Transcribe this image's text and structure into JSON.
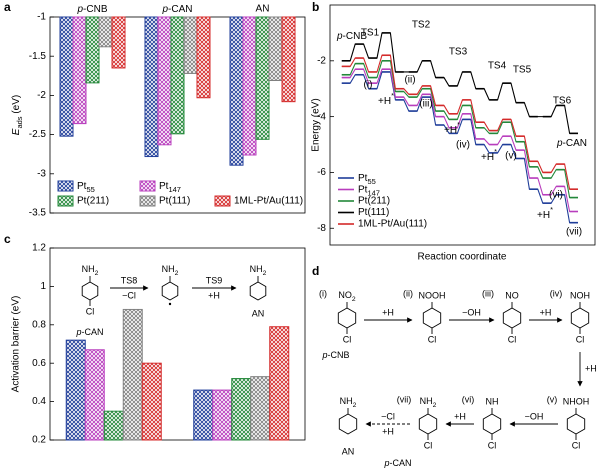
{
  "panels": [
    "a",
    "b",
    "c",
    "d"
  ],
  "chart_data": [
    {
      "type": "bar",
      "ylabel": "Eads (eV)",
      "categories": [
        "p-CNB",
        "p-CAN",
        "AN"
      ],
      "ylim": [
        -3.5,
        -1.0
      ],
      "yticks": [
        -3.5,
        -3.0,
        -2.5,
        -2.0,
        -1.5,
        -1.0
      ],
      "hatch": true,
      "series": [
        {
          "name": "Pt55",
          "color": "#1f3d99",
          "values": [
            -2.52,
            -2.78,
            -2.89
          ]
        },
        {
          "name": "Pt147",
          "color": "#b83dbd",
          "values": [
            -2.36,
            -2.63,
            -2.76
          ]
        },
        {
          "name": "Pt(211)",
          "color": "#23883a",
          "values": [
            -1.84,
            -2.49,
            -2.56
          ]
        },
        {
          "name": "Pt(111)",
          "color": "#808080",
          "values": [
            -1.38,
            -1.72,
            -1.81
          ]
        },
        {
          "name": "1ML-Pt/Au(111)",
          "color": "#d42a2a",
          "values": [
            -1.65,
            -2.03,
            -2.08
          ]
        }
      ]
    },
    {
      "type": "energy-profile",
      "ylabel": "Energy (eV)",
      "xlabel": "Reaction coordinate",
      "ylim": [
        -8.6,
        0
      ],
      "yticks": [
        -8,
        -6,
        -4,
        -2
      ],
      "annotations": [
        "p-CNB",
        "TS1",
        "TS2",
        "TS3",
        "TS4",
        "TS5",
        "TS6",
        "(i)",
        "(ii)",
        "(iii)",
        "(iv)",
        "(v)",
        "(vi)",
        "(vii)",
        "+H*",
        "+H*",
        "+H*",
        "+H*",
        "p-CAN"
      ],
      "series": [
        {
          "name": "Pt55",
          "color": "#1f3d99",
          "values": [
            -2.8,
            -2.5,
            -3.0,
            -2.4,
            -3.4,
            -3.8,
            -3.3,
            -4.3,
            -4.6,
            -4.1,
            -5.0,
            -5.3,
            -5.0,
            -5.5,
            -6.6,
            -7.1,
            -6.8,
            -7.8
          ]
        },
        {
          "name": "Pt147",
          "color": "#b83dbd",
          "values": [
            -2.6,
            -2.3,
            -2.8,
            -2.3,
            -3.3,
            -3.6,
            -3.2,
            -4.0,
            -4.4,
            -3.9,
            -4.8,
            -5.0,
            -4.7,
            -5.2,
            -6.2,
            -6.8,
            -6.5,
            -7.4
          ]
        },
        {
          "name": "Pt(211)",
          "color": "#23883a",
          "values": [
            -2.5,
            -2.1,
            -2.6,
            -2.0,
            -3.1,
            -3.3,
            -3.0,
            -3.8,
            -4.1,
            -3.6,
            -4.4,
            -4.6,
            -4.2,
            -4.9,
            -5.8,
            -6.2,
            -5.9,
            -6.9
          ]
        },
        {
          "name": "Pt(111)",
          "color": "#000000",
          "values": [
            -2.0,
            -1.4,
            -1.9,
            -1.0,
            -2.4,
            -2.4,
            -2.0,
            -2.6,
            -2.9,
            -2.4,
            -3.0,
            -3.4,
            -2.8,
            -3.5,
            -4.0,
            -4.0,
            -3.6,
            -4.6
          ]
        },
        {
          "name": "1ML-Pt/Au(111)",
          "color": "#d42a2a",
          "values": [
            -2.2,
            -1.9,
            -2.4,
            -1.8,
            -3.0,
            -3.2,
            -2.9,
            -3.6,
            -3.9,
            -3.4,
            -4.2,
            -4.5,
            -4.1,
            -4.7,
            -5.6,
            -6.0,
            -5.7,
            -6.6
          ]
        }
      ]
    },
    {
      "type": "bar",
      "ylabel": "Activation barrier (eV)",
      "categories": [
        null,
        null
      ],
      "ylim": [
        0.2,
        1.2
      ],
      "yticks": [
        0.2,
        0.4,
        0.6,
        0.8,
        1.0,
        1.2
      ],
      "hatch": true,
      "series": [
        {
          "color": "#1f3d99",
          "values": [
            0.72,
            0.46
          ]
        },
        {
          "color": "#b83dbd",
          "values": [
            0.67,
            0.46
          ]
        },
        {
          "color": "#23883a",
          "values": [
            0.35,
            0.52
          ]
        },
        {
          "color": "#808080",
          "values": [
            0.88,
            0.53
          ]
        },
        {
          "color": "#d42a2a",
          "values": [
            0.6,
            0.79
          ]
        }
      ],
      "scheme": {
        "molecules": [
          {
            "top": "NH2",
            "bottom": "Cl"
          },
          {
            "top": "NH2"
          },
          {
            "top": "NH2"
          }
        ],
        "arrows": [
          [
            "TS8",
            "−Cl"
          ],
          [
            "TS9",
            "+H"
          ]
        ],
        "names": [
          "p-CAN",
          "AN"
        ]
      }
    }
  ],
  "diagram": {
    "molecules": [
      {
        "tag": "(i)",
        "top": "NO2",
        "bottom": "Cl"
      },
      {
        "tag": "(ii)",
        "top": "NOOH",
        "bottom": "Cl"
      },
      {
        "tag": "(iii)",
        "top": "NO",
        "bottom": "Cl"
      },
      {
        "tag": "(iv)",
        "top": "NOH",
        "bottom": "Cl"
      },
      {
        "tag": "(v)",
        "top": "NHOH",
        "bottom": "Cl"
      },
      {
        "tag": "(vi)",
        "top": "NH",
        "bottom": "Cl"
      },
      {
        "tag": "(vii)",
        "top": "NH2",
        "bottom": "Cl"
      },
      {
        "top": "NH2"
      }
    ],
    "arrows": [
      [
        "+H"
      ],
      [
        "−OH"
      ],
      [
        "+H"
      ],
      [
        "+H"
      ],
      [
        "−OH"
      ],
      [
        "+H"
      ],
      [
        "−Cl",
        "+H"
      ]
    ],
    "names": [
      "p-CNB",
      "p-CAN",
      "AN"
    ]
  }
}
